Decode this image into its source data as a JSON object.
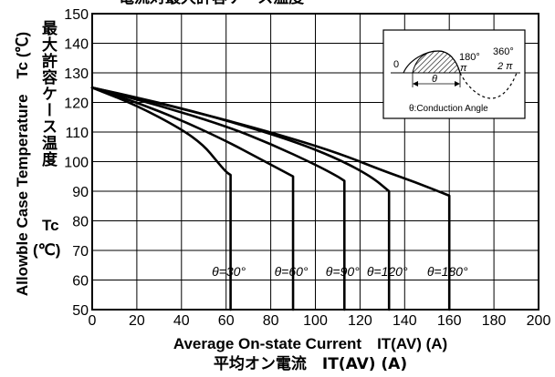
{
  "chart_data": {
    "type": "line",
    "title": "電流対最大許容ケース温度",
    "xlabel": "Average On-state Current　IT(AV) (A)",
    "xlabel_jp": "平均オン電流　IT(AV) (A)",
    "ylabel": "Allowble Case Temperature　Tc (℃)",
    "ylabel_jp_top": "最大許容ケース温度",
    "ylabel_tc": "Tc",
    "ylabel_unit": "(℃)",
    "xlim": [
      0,
      200
    ],
    "ylim": [
      50,
      150
    ],
    "x_ticks": [
      "0",
      "20",
      "40",
      "60",
      "80",
      "100",
      "120",
      "140",
      "160",
      "180",
      "200"
    ],
    "y_ticks": [
      "50",
      "60",
      "70",
      "80",
      "90",
      "100",
      "110",
      "120",
      "130",
      "140",
      "150"
    ],
    "grid": true,
    "series": [
      {
        "name": "θ=30°",
        "x": [
          0,
          20,
          40,
          50,
          56,
          60,
          62,
          62,
          62
        ],
        "y": [
          125,
          119,
          111,
          105.5,
          100,
          96.5,
          95.5,
          75,
          50
        ]
      },
      {
        "name": "θ=60°",
        "x": [
          0,
          20,
          40,
          60,
          75,
          85,
          90,
          90,
          90
        ],
        "y": [
          125,
          120,
          114,
          107,
          101,
          97,
          95,
          75,
          50
        ]
      },
      {
        "name": "θ=90°",
        "x": [
          0,
          30,
          60,
          80,
          100,
          110,
          113,
          113,
          113
        ],
        "y": [
          125,
          119,
          112,
          106,
          99,
          95,
          93.5,
          75,
          50
        ]
      },
      {
        "name": "θ=120°",
        "x": [
          0,
          30,
          60,
          90,
          110,
          125,
          133,
          133,
          133
        ],
        "y": [
          125,
          120,
          114,
          107,
          101,
          95,
          90,
          75,
          50
        ]
      },
      {
        "name": "θ=180°",
        "x": [
          0,
          40,
          80,
          110,
          130,
          145,
          160,
          160,
          160
        ],
        "y": [
          125,
          118,
          110,
          103,
          97,
          93,
          88.5,
          75,
          50
        ]
      }
    ],
    "curve_labels": [
      "θ=30°",
      "θ=60°",
      "θ=90°",
      "θ=120°",
      "θ=180°"
    ],
    "inset": {
      "zero": "0",
      "deg180": "180°",
      "pi": "π",
      "deg360": "360°",
      "two_pi": "2 π",
      "theta": "θ",
      "note": "θ:Conduction Angle"
    }
  }
}
